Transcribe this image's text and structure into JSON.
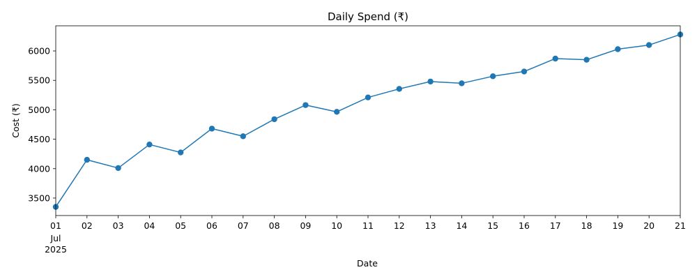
{
  "chart_data": {
    "type": "line",
    "title": "Daily Spend (₹)",
    "xlabel": "Date",
    "ylabel": "Cost (₹)",
    "x_tick_labels": [
      "01",
      "02",
      "03",
      "04",
      "05",
      "06",
      "07",
      "08",
      "09",
      "10",
      "11",
      "12",
      "13",
      "14",
      "15",
      "16",
      "17",
      "18",
      "19",
      "20",
      "21"
    ],
    "x_tick_sublabel": [
      "Jul",
      "2025"
    ],
    "x": [
      "2025-07-01",
      "2025-07-02",
      "2025-07-03",
      "2025-07-04",
      "2025-07-05",
      "2025-07-06",
      "2025-07-07",
      "2025-07-08",
      "2025-07-09",
      "2025-07-10",
      "2025-07-11",
      "2025-07-12",
      "2025-07-13",
      "2025-07-14",
      "2025-07-15",
      "2025-07-16",
      "2025-07-17",
      "2025-07-18",
      "2025-07-19",
      "2025-07-20",
      "2025-07-21"
    ],
    "series": [
      {
        "values": [
          3350,
          4150,
          4010,
          4410,
          4275,
          4680,
          4550,
          4840,
          5080,
          4965,
          5210,
          5355,
          5480,
          5450,
          5570,
          5650,
          5870,
          5850,
          6030,
          6100,
          6280
        ],
        "color": "#1f77b4",
        "marker": "circle"
      }
    ],
    "y_ticks": [
      3500,
      4000,
      4500,
      5000,
      5500,
      6000
    ],
    "ylim": [
      3203,
      6427
    ],
    "xlim": [
      "2025-07-01",
      "2025-07-21"
    ],
    "grid": false,
    "legend": "none"
  }
}
